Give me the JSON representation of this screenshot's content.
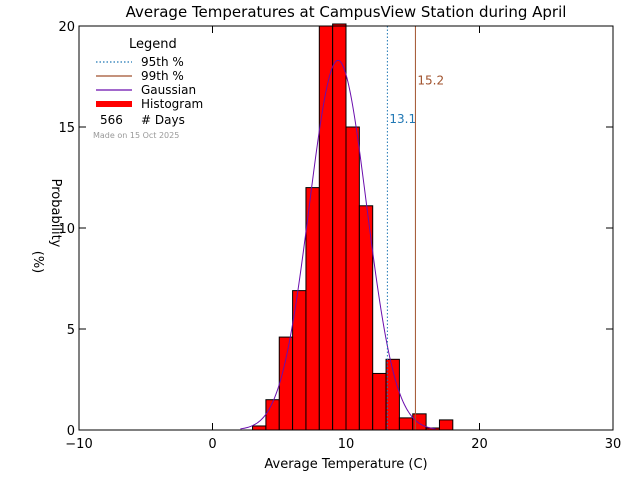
{
  "chart_data": {
    "type": "bar",
    "title": "Average Temperatures at CampusView Station during April",
    "xlabel": "Average Temperature (C)",
    "ylabel_line1": "Probability",
    "ylabel_line2": "(%)",
    "xlim": [
      -10,
      30
    ],
    "ylim": [
      0,
      20
    ],
    "x_ticks": [
      -10,
      0,
      10,
      20,
      30
    ],
    "y_ticks": [
      0,
      5,
      10,
      15,
      20
    ],
    "x_tick_labels": [
      "−10",
      "0",
      "10",
      "20",
      "30"
    ],
    "y_tick_labels": [
      "0",
      "5",
      "10",
      "15",
      "20"
    ],
    "grid": false,
    "legend": {
      "title": "Legend",
      "placement": "top-left",
      "entries": [
        {
          "label": "95th %",
          "color": "#1f77b4",
          "style": "dotted"
        },
        {
          "label": "99th %",
          "color": "#a0522d",
          "style": "solid"
        },
        {
          "label": "Gaussian",
          "color": "#6a0dad",
          "style": "solid"
        },
        {
          "label": "Histogram",
          "color": "#ff0000",
          "style": "thick"
        }
      ],
      "count_value": "566",
      "count_label": "# Days",
      "made_on": "Made on 15 Oct 2025"
    },
    "bin_width": 1,
    "bins": [
      {
        "left": 3,
        "value": 0.2
      },
      {
        "left": 4,
        "value": 1.5
      },
      {
        "left": 5,
        "value": 4.6
      },
      {
        "left": 6,
        "value": 6.9
      },
      {
        "left": 7,
        "value": 12.0
      },
      {
        "left": 8,
        "value": 20.0
      },
      {
        "left": 9,
        "value": 20.1
      },
      {
        "left": 10,
        "value": 15.0
      },
      {
        "left": 11,
        "value": 11.1
      },
      {
        "left": 12,
        "value": 2.8
      },
      {
        "left": 13,
        "value": 3.5
      },
      {
        "left": 14,
        "value": 0.6
      },
      {
        "left": 15,
        "value": 0.8
      },
      {
        "left": 16,
        "value": 0.1
      },
      {
        "left": 17,
        "value": 0.5
      }
    ],
    "gaussian": {
      "mean": 9.4,
      "sd": 2.15,
      "peak": 18.3
    },
    "percentiles": [
      {
        "name": "95th",
        "value": 13.1,
        "label": "13.1",
        "color": "#1f77b4",
        "label_y": 15.2
      },
      {
        "name": "99th",
        "value": 15.2,
        "label": "15.2",
        "color": "#a0522d",
        "label_y": 17.1
      }
    ],
    "colors": {
      "histogram": "#ff0000",
      "gaussian": "#6a0dad",
      "axes": "#000000"
    }
  }
}
